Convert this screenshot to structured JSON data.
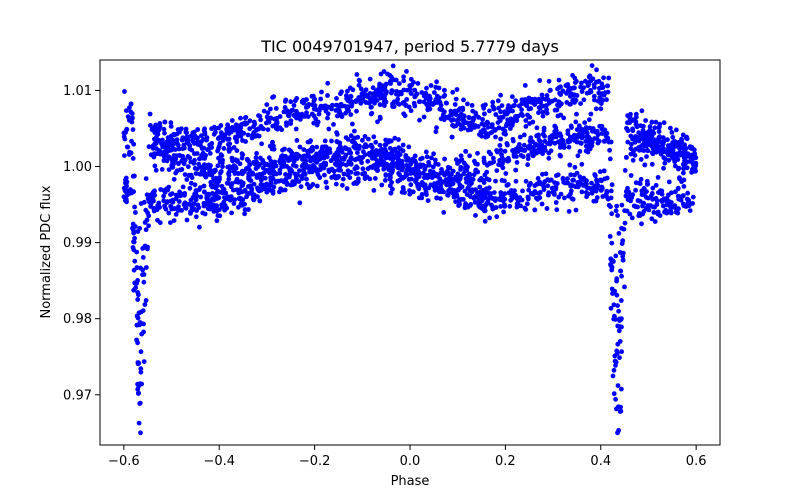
{
  "chart_data": {
    "type": "scatter",
    "title": "TIC 0049701947, period 5.7779 days",
    "xlabel": "Phase",
    "ylabel": "Normalized PDC flux",
    "xlim": [
      -0.65,
      0.65
    ],
    "ylim": [
      0.9634,
      1.014
    ],
    "xticks": [
      -0.6,
      -0.4,
      -0.2,
      0.0,
      0.2,
      0.4,
      0.6
    ],
    "xtick_labels": [
      "−0.6",
      "−0.4",
      "−0.2",
      "0.0",
      "0.2",
      "0.4",
      "0.6"
    ],
    "yticks": [
      0.97,
      0.98,
      0.99,
      1.0,
      1.01
    ],
    "ytick_labels": [
      "0.97",
      "0.98",
      "0.99",
      "1.00",
      "1.01"
    ],
    "grid": false,
    "marker_color": "#0000ff",
    "series": [
      {
        "name": "PDC flux",
        "phase_range": [
          -0.6,
          0.6
        ],
        "band_tracks": [
          {
            "name": "upper",
            "x": [
              -0.6,
              -0.55,
              -0.5,
              -0.4,
              -0.3,
              -0.2,
              -0.1,
              0.0,
              0.05,
              0.1,
              0.15,
              0.2,
              0.3,
              0.4,
              0.45,
              0.5,
              0.6
            ],
            "y": [
              1.0085,
              1.0055,
              1.0035,
              1.0035,
              1.006,
              1.0075,
              1.009,
              1.0095,
              1.0085,
              1.0065,
              1.0055,
              1.0065,
              1.0085,
              1.0105,
              1.0065,
              1.0035,
              1.001
            ]
          },
          {
            "name": "middle",
            "x": [
              -0.6,
              -0.55,
              -0.5,
              -0.4,
              -0.3,
              -0.2,
              -0.1,
              0.0,
              0.05,
              0.1,
              0.15,
              0.2,
              0.3,
              0.4,
              0.45,
              0.5,
              0.6
            ],
            "y": [
              1.0035,
              1.0025,
              1.001,
              0.999,
              1.0,
              1.0015,
              1.0025,
              1.0005,
              0.999,
              0.9985,
              0.9995,
              1.0015,
              1.0035,
              1.004,
              1.0035,
              1.003,
              1.001
            ]
          },
          {
            "name": "lower",
            "x": [
              -0.6,
              -0.55,
              -0.5,
              -0.4,
              -0.3,
              -0.2,
              -0.1,
              0.0,
              0.05,
              0.1,
              0.15,
              0.2,
              0.3,
              0.4,
              0.45,
              0.5,
              0.6
            ],
            "y": [
              0.9965,
              0.9955,
              0.995,
              0.9955,
              0.9975,
              0.9995,
              1.0,
              0.9985,
              0.9975,
              0.9965,
              0.9955,
              0.996,
              0.997,
              0.9975,
              0.996,
              0.9955,
              0.996
            ]
          }
        ],
        "band_scatter": 0.0012,
        "eclipses": [
          {
            "center_phase": -0.565,
            "half_width": 0.018,
            "depth_min": 0.965
          },
          {
            "center_phase": 0.435,
            "half_width": 0.018,
            "depth_min": 0.965
          }
        ],
        "approx_point_count": 3200
      }
    ]
  }
}
